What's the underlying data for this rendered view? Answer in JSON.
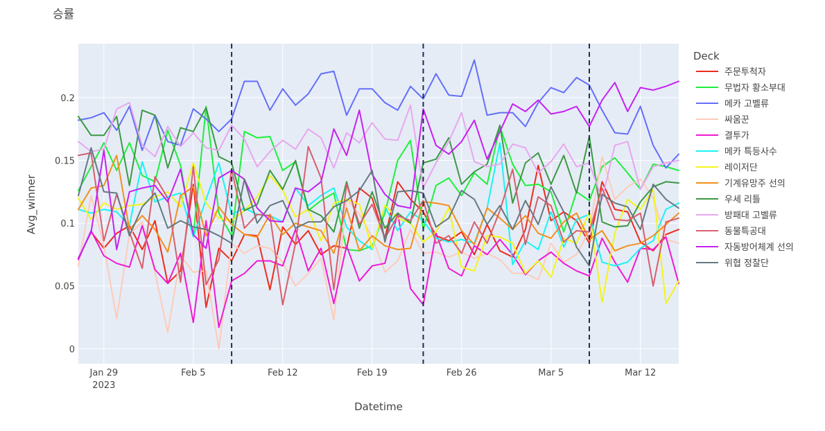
{
  "chart_data": {
    "type": "line",
    "title": "승률",
    "xlabel": "Datetime",
    "ylabel": "Avg_winner",
    "legend_title": "Deck",
    "legend_position": "right",
    "grid": true,
    "x_range": [
      "2023-01-27",
      "2023-03-15"
    ],
    "ylim": [
      -0.012,
      0.243
    ],
    "x_ticks": [
      {
        "date": "2023-01-29",
        "label": "Jan 29",
        "sublabel": "2023"
      },
      {
        "date": "2023-02-05",
        "label": "Feb 5",
        "sublabel": ""
      },
      {
        "date": "2023-02-12",
        "label": "Feb 12",
        "sublabel": ""
      },
      {
        "date": "2023-02-19",
        "label": "Feb 19",
        "sublabel": ""
      },
      {
        "date": "2023-02-26",
        "label": "Feb 26",
        "sublabel": ""
      },
      {
        "date": "2023-03-05",
        "label": "Mar 5",
        "sublabel": ""
      },
      {
        "date": "2023-03-12",
        "label": "Mar 12",
        "sublabel": ""
      }
    ],
    "y_ticks": [
      {
        "value": 0,
        "label": "0"
      },
      {
        "value": 0.05,
        "label": "0.05"
      },
      {
        "value": 0.1,
        "label": "0.1"
      },
      {
        "value": 0.15,
        "label": "0.15"
      },
      {
        "value": 0.2,
        "label": "0.2"
      }
    ],
    "vlines": [
      "2023-02-08",
      "2023-02-23",
      "2023-03-08"
    ],
    "dates": [
      "2023-01-27",
      "2023-01-28",
      "2023-01-29",
      "2023-01-30",
      "2023-01-31",
      "2023-02-01",
      "2023-02-02",
      "2023-02-03",
      "2023-02-04",
      "2023-02-05",
      "2023-02-06",
      "2023-02-07",
      "2023-02-08",
      "2023-02-09",
      "2023-02-10",
      "2023-02-11",
      "2023-02-12",
      "2023-02-13",
      "2023-02-14",
      "2023-02-15",
      "2023-02-16",
      "2023-02-17",
      "2023-02-18",
      "2023-02-19",
      "2023-02-20",
      "2023-02-21",
      "2023-02-22",
      "2023-02-23",
      "2023-02-24",
      "2023-02-25",
      "2023-02-26",
      "2023-02-27",
      "2023-02-28",
      "2023-03-01",
      "2023-03-02",
      "2023-03-03",
      "2023-03-04",
      "2023-03-05",
      "2023-03-06",
      "2023-03-07",
      "2023-03-08",
      "2023-03-09",
      "2023-03-10",
      "2023-03-11",
      "2023-03-12",
      "2023-03-13",
      "2023-03-14",
      "2023-03-15"
    ],
    "series": [
      {
        "name": "주문투척자",
        "color": "#EF2A1C",
        "values": [
          0.072,
          0.093,
          0.08,
          0.092,
          0.098,
          0.079,
          0.102,
          0.052,
          0.062,
          0.131,
          0.033,
          0.08,
          0.07,
          0.091,
          0.09,
          0.047,
          0.097,
          0.083,
          0.094,
          0.075,
          0.082,
          0.08,
          0.128,
          0.12,
          0.088,
          0.133,
          0.119,
          0.109,
          0.09,
          0.086,
          0.093,
          0.075,
          0.099,
          0.078,
          0.073,
          0.095,
          0.146,
          0.102,
          0.109,
          0.102,
          0.084,
          0.133,
          0.111,
          0.109,
          0.085,
          0.078,
          0.091,
          0.095
        ]
      },
      {
        "name": "무법자 황소부대",
        "color": "#1CF03A",
        "values": [
          0.126,
          0.145,
          0.164,
          0.142,
          0.164,
          0.138,
          0.133,
          0.174,
          0.146,
          0.09,
          0.193,
          0.108,
          0.09,
          0.173,
          0.168,
          0.169,
          0.142,
          0.149,
          0.11,
          0.118,
          0.124,
          0.079,
          0.078,
          0.082,
          0.108,
          0.15,
          0.166,
          0.095,
          0.13,
          0.136,
          0.122,
          0.14,
          0.131,
          0.177,
          0.147,
          0.13,
          0.131,
          0.125,
          0.093,
          0.125,
          0.118,
          0.145,
          0.152,
          0.14,
          0.127,
          0.147,
          0.145,
          0.142
        ]
      },
      {
        "name": "메카 고벨류",
        "color": "#636EFA",
        "values": [
          0.182,
          0.184,
          0.188,
          0.174,
          0.193,
          0.158,
          0.186,
          0.165,
          0.162,
          0.191,
          0.183,
          0.173,
          0.183,
          0.213,
          0.213,
          0.19,
          0.207,
          0.194,
          0.203,
          0.219,
          0.221,
          0.186,
          0.207,
          0.207,
          0.196,
          0.19,
          0.209,
          0.199,
          0.219,
          0.202,
          0.201,
          0.23,
          0.186,
          0.188,
          0.188,
          0.177,
          0.196,
          0.208,
          0.204,
          0.216,
          0.21,
          0.19,
          0.172,
          0.171,
          0.193,
          0.162,
          0.144,
          0.155
        ]
      },
      {
        "name": "싸움꾼",
        "color": "#FECBB9",
        "values": [
          0.066,
          0.122,
          0.082,
          0.024,
          0.091,
          0.101,
          0.061,
          0.013,
          0.074,
          0.061,
          0.062,
          0.0,
          0.084,
          0.076,
          0.082,
          0.08,
          0.069,
          0.05,
          0.06,
          0.072,
          0.023,
          0.119,
          0.107,
          0.089,
          0.061,
          0.07,
          0.095,
          0.076,
          0.077,
          0.073,
          0.077,
          0.072,
          0.076,
          0.071,
          0.06,
          0.06,
          0.055,
          0.084,
          0.069,
          0.075,
          0.094,
          0.153,
          0.119,
          0.129,
          0.135,
          0.12,
          0.087,
          0.084
        ]
      },
      {
        "name": "결투가",
        "color": "#F019D2",
        "values": [
          0.071,
          0.094,
          0.074,
          0.068,
          0.065,
          0.098,
          0.063,
          0.052,
          0.076,
          0.021,
          0.102,
          0.017,
          0.054,
          0.06,
          0.07,
          0.07,
          0.066,
          0.095,
          0.062,
          0.08,
          0.036,
          0.082,
          0.054,
          0.066,
          0.068,
          0.108,
          0.048,
          0.035,
          0.092,
          0.064,
          0.058,
          0.082,
          0.075,
          0.087,
          0.075,
          0.059,
          0.07,
          0.077,
          0.068,
          0.062,
          0.058,
          0.088,
          0.069,
          0.053,
          0.08,
          0.079,
          0.089,
          0.052
        ]
      },
      {
        "name": "메카 특등사수",
        "color": "#18F4F4",
        "values": [
          0.111,
          0.108,
          0.111,
          0.109,
          0.098,
          0.149,
          0.117,
          0.121,
          0.124,
          0.089,
          0.119,
          0.148,
          0.107,
          0.112,
          0.107,
          0.106,
          0.101,
          0.128,
          0.114,
          0.122,
          0.128,
          0.097,
          0.086,
          0.079,
          0.113,
          0.094,
          0.109,
          0.102,
          0.088,
          0.085,
          0.087,
          0.084,
          0.112,
          0.164,
          0.067,
          0.086,
          0.079,
          0.109,
          0.081,
          0.103,
          0.107,
          0.069,
          0.066,
          0.069,
          0.08,
          0.086,
          0.111,
          0.116
        ]
      },
      {
        "name": "레이저단",
        "color": "#F4F41A",
        "values": [
          0.12,
          0.103,
          0.116,
          0.111,
          0.114,
          0.115,
          0.121,
          0.125,
          0.113,
          0.148,
          0.116,
          0.104,
          0.102,
          0.11,
          0.121,
          0.138,
          0.126,
          0.105,
          0.111,
          0.086,
          0.116,
          0.119,
          0.115,
          0.08,
          0.114,
          0.104,
          0.1,
          0.085,
          0.093,
          0.112,
          0.065,
          0.062,
          0.09,
          0.089,
          0.084,
          0.06,
          0.07,
          0.057,
          0.088,
          0.084,
          0.109,
          0.037,
          0.092,
          0.119,
          0.111,
          0.127,
          0.036,
          0.054
        ]
      },
      {
        "name": "기계유망주 선의",
        "color": "#F48F1A",
        "values": [
          0.111,
          0.128,
          0.13,
          0.154,
          0.095,
          0.106,
          0.095,
          0.077,
          0.122,
          0.129,
          0.09,
          0.113,
          0.099,
          0.091,
          0.089,
          0.107,
          0.091,
          0.1,
          0.097,
          0.094,
          0.076,
          0.112,
          0.078,
          0.09,
          0.082,
          0.079,
          0.08,
          0.117,
          0.116,
          0.114,
          0.094,
          0.083,
          0.112,
          0.104,
          0.095,
          0.106,
          0.092,
          0.088,
          0.101,
          0.108,
          0.087,
          0.094,
          0.078,
          0.082,
          0.084,
          0.09,
          0.099,
          0.108
        ]
      },
      {
        "name": "우세 리틀",
        "color": "#3C9843",
        "values": [
          0.185,
          0.17,
          0.17,
          0.185,
          0.13,
          0.19,
          0.186,
          0.144,
          0.176,
          0.173,
          0.192,
          0.153,
          0.148,
          0.11,
          0.115,
          0.142,
          0.127,
          0.15,
          0.111,
          0.106,
          0.093,
          0.133,
          0.096,
          0.125,
          0.096,
          0.108,
          0.1,
          0.148,
          0.151,
          0.168,
          0.131,
          0.141,
          0.147,
          0.178,
          0.116,
          0.148,
          0.156,
          0.131,
          0.154,
          0.124,
          0.169,
          0.101,
          0.097,
          0.098,
          0.117,
          0.129,
          0.133,
          0.132
        ]
      },
      {
        "name": "방패대 고벨류",
        "color": "#E8A7EE",
        "values": [
          0.165,
          0.157,
          0.159,
          0.191,
          0.196,
          0.162,
          0.153,
          0.177,
          0.161,
          0.172,
          0.16,
          0.158,
          0.178,
          0.167,
          0.145,
          0.157,
          0.166,
          0.159,
          0.175,
          0.168,
          0.144,
          0.172,
          0.164,
          0.18,
          0.167,
          0.166,
          0.194,
          0.128,
          0.148,
          0.165,
          0.188,
          0.149,
          0.145,
          0.147,
          0.163,
          0.16,
          0.14,
          0.149,
          0.163,
          0.145,
          0.148,
          0.119,
          0.162,
          0.165,
          0.127,
          0.145,
          0.148,
          0.15
        ]
      },
      {
        "name": "동물특공대",
        "color": "#D95E6D",
        "values": [
          0.154,
          0.156,
          0.086,
          0.123,
          0.093,
          0.064,
          0.137,
          0.12,
          0.053,
          0.145,
          0.051,
          0.071,
          0.143,
          0.096,
          0.107,
          0.106,
          0.035,
          0.084,
          0.161,
          0.136,
          0.047,
          0.131,
          0.099,
          0.115,
          0.088,
          0.106,
          0.102,
          0.118,
          0.084,
          0.09,
          0.076,
          0.101,
          0.084,
          0.11,
          0.143,
          0.083,
          0.121,
          0.114,
          0.085,
          0.094,
          0.093,
          0.128,
          0.103,
          0.102,
          0.108,
          0.05,
          0.101,
          0.104
        ]
      },
      {
        "name": "자동방어체계 선의",
        "color": "#C720F0",
        "values": [
          0.072,
          0.093,
          0.158,
          0.079,
          0.125,
          0.128,
          0.13,
          0.117,
          0.143,
          0.091,
          0.08,
          0.136,
          0.142,
          0.135,
          0.112,
          0.102,
          0.101,
          0.128,
          0.125,
          0.133,
          0.175,
          0.154,
          0.19,
          0.139,
          0.123,
          0.114,
          0.112,
          0.191,
          0.162,
          0.155,
          0.165,
          0.182,
          0.151,
          0.173,
          0.195,
          0.189,
          0.198,
          0.187,
          0.189,
          0.193,
          0.177,
          0.198,
          0.212,
          0.189,
          0.208,
          0.206,
          0.209,
          0.213
        ]
      },
      {
        "name": "위협 정찰단",
        "color": "#657880",
        "values": [
          0.122,
          0.16,
          0.125,
          0.124,
          0.09,
          0.113,
          0.124,
          0.096,
          0.102,
          0.097,
          0.095,
          0.09,
          0.084,
          0.135,
          0.1,
          0.114,
          0.118,
          0.096,
          0.101,
          0.101,
          0.113,
          0.118,
          0.126,
          0.142,
          0.085,
          0.125,
          0.126,
          0.124,
          0.097,
          0.104,
          0.126,
          0.119,
          0.099,
          0.114,
          0.095,
          0.118,
          0.099,
          0.129,
          0.109,
          0.081,
          0.066,
          0.123,
          0.116,
          0.113,
          0.095,
          0.131,
          0.119,
          0.112
        ]
      }
    ]
  }
}
